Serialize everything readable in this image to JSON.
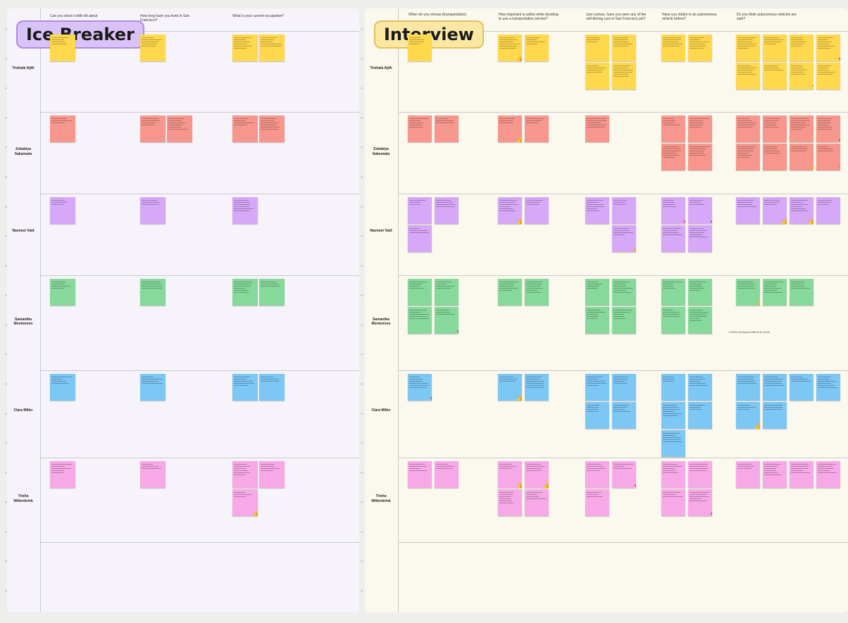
{
  "ice_breaker": {
    "title": "Ice Breaker",
    "questions": [
      "Can you share a little bit about",
      "How long have you lived in San Francisco?",
      "What is your current occupation?"
    ]
  },
  "interview": {
    "title": "Interview",
    "questions": [
      "When do you choose [transportation]",
      "How important is safety while deciding to use a transportation service?",
      "Just curious, have you seen any of the self-driving cars in San Francisco yet?",
      "Have you ridden in an autonomous vehicle before?",
      "Do you think autonomous vehicles are safe?"
    ],
    "annotation": "It feels creepy/unnatural to some"
  },
  "participants": [
    {
      "name": "Trishala Ajith",
      "color": "#ffd84d"
    },
    {
      "name": "Zohabiya Sakarwala",
      "color": "#f7968c"
    },
    {
      "name": "Navneet Vaid",
      "color": "#d6a8f7"
    },
    {
      "name": "Samantha Montemreo",
      "color": "#86d99b"
    },
    {
      "name": "Clara Miller",
      "color": "#7dc7f5"
    },
    {
      "name": "Trisha Wittenbrink",
      "color": "#f7a8e6"
    }
  ],
  "colors": {
    "ice_panel_bg": "#f7f3fb",
    "interview_panel_bg": "#fbf9ee",
    "ice_badge_bg": "#d9c2f7",
    "ice_badge_border": "#b08ae0",
    "interview_badge_bg": "#fbe7a3",
    "interview_badge_border": "#e0c15a"
  },
  "stamp_icons": [
    "thumbs-up-icon",
    "heart-icon",
    "star-icon",
    "question-mark-icon"
  ]
}
